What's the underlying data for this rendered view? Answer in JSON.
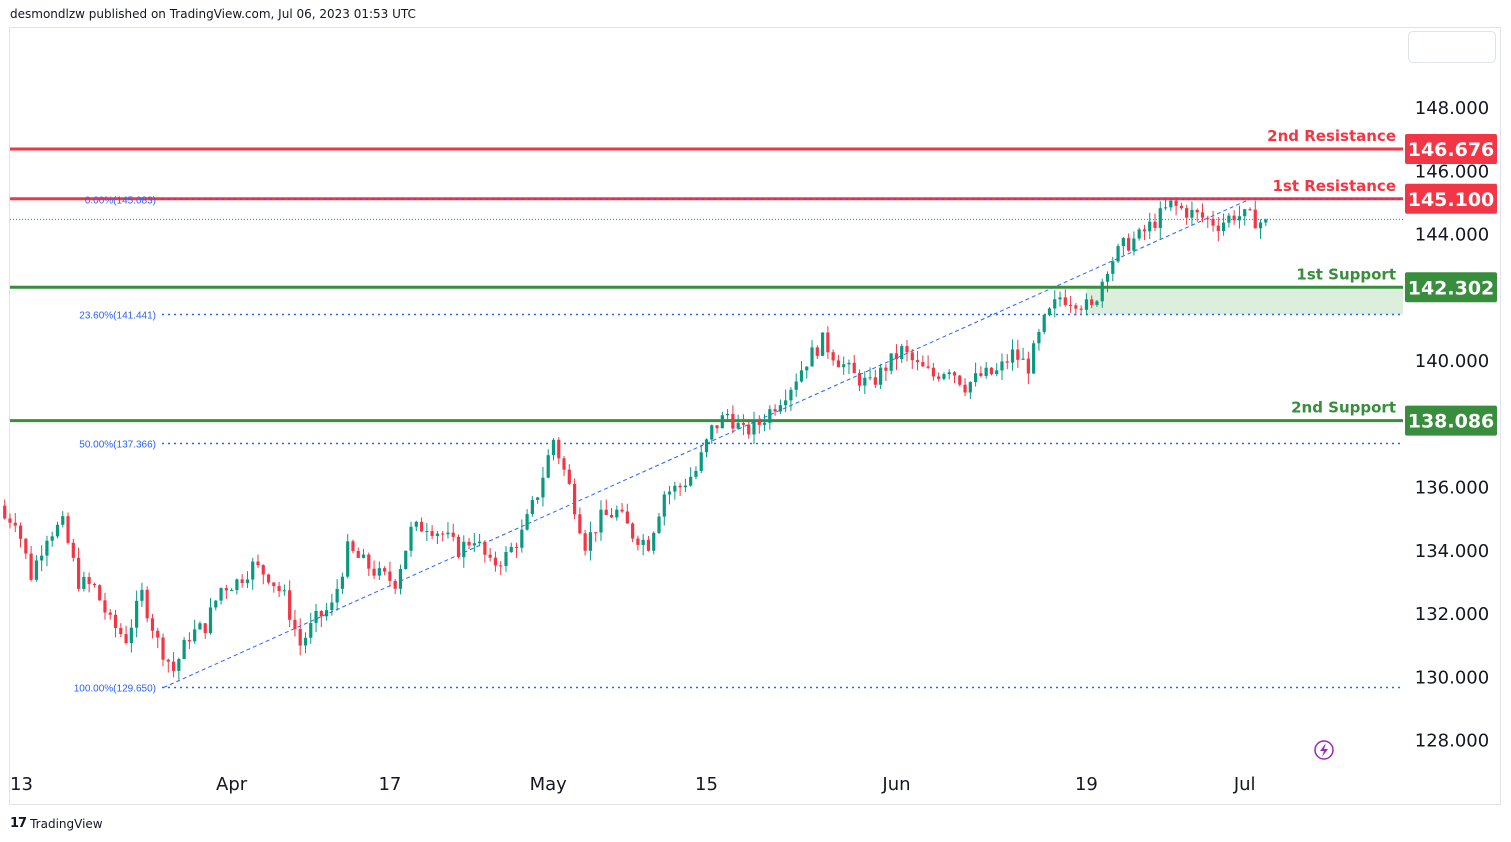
{
  "header": {
    "publish_text": "desmondlzw published on TradingView.com, Jul 06, 2023 01:53 UTC"
  },
  "footer": {
    "brand_label": "TradingView"
  },
  "colors": {
    "up": "#089981",
    "down": "#f23645",
    "resistance": "#f23645",
    "support": "#388e3c",
    "fib": "#2962ff",
    "zone": "#c8e6c9",
    "last_price": "#089981"
  },
  "chart_data": {
    "type": "candlestick",
    "ylim": [
      127.2,
      150.5
    ],
    "y_ticks": [
      {
        "value": 128,
        "label": "128.000"
      },
      {
        "value": 130,
        "label": "130.000"
      },
      {
        "value": 132,
        "label": "132.000"
      },
      {
        "value": 134,
        "label": "134.000"
      },
      {
        "value": 136,
        "label": "136.000"
      },
      {
        "value": 140,
        "label": "140.000"
      },
      {
        "value": 144,
        "label": "144.000"
      },
      {
        "value": 146,
        "label": "146.000"
      },
      {
        "value": 148,
        "label": "148.000"
      }
    ],
    "x_ticks": [
      {
        "index": 0,
        "label": "13"
      },
      {
        "index": 14,
        "label": "Apr"
      },
      {
        "index": 24,
        "label": "17"
      },
      {
        "index": 34,
        "label": "May"
      },
      {
        "index": 44,
        "label": "15"
      },
      {
        "index": 56,
        "label": "Jun"
      },
      {
        "index": 68,
        "label": "19"
      },
      {
        "index": 78,
        "label": "Jul"
      }
    ],
    "x_range": [
      0,
      88
    ],
    "levels": [
      {
        "name": "2nd Resistance",
        "value": 146.676,
        "label": "146.676",
        "kind": "resistance"
      },
      {
        "name": "1st Resistance",
        "value": 145.1,
        "label": "145.100",
        "kind": "resistance"
      },
      {
        "name": "1st Support",
        "value": 142.302,
        "label": "142.302",
        "kind": "support"
      },
      {
        "name": "2nd Support",
        "value": 138.086,
        "label": "138.086",
        "kind": "support"
      }
    ],
    "fib_levels": [
      {
        "label": "0.00%(145.083)",
        "value": 145.083
      },
      {
        "label": "23.60%(141.441)",
        "value": 141.441
      },
      {
        "label": "50.00%(137.366)",
        "value": 137.366
      },
      {
        "label": "100.00%(129.650)",
        "value": 129.65
      }
    ],
    "fib_trend": {
      "from": {
        "index": 9.7,
        "value": 129.65
      },
      "to": {
        "index": 78.3,
        "value": 145.083
      }
    },
    "support_zone": {
      "from_index": 68,
      "to_index": 88,
      "low": 141.441,
      "high": 142.302
    },
    "last_price": 144.45,
    "candles_close": [
      135.0,
      133.2,
      134.5,
      134.8,
      133.0,
      132.8,
      131.7,
      131.2,
      132.6,
      131.1,
      130.2,
      131.3,
      131.6,
      132.8,
      133.0,
      133.5,
      133.2,
      132.5,
      131.0,
      131.8,
      132.2,
      134.0,
      133.6,
      133.2,
      133.0,
      134.6,
      134.8,
      134.5,
      134.0,
      134.4,
      133.5,
      133.8,
      134.5,
      135.8,
      137.5,
      136.0,
      134.2,
      135.0,
      135.2,
      134.5,
      134.2,
      135.8,
      136.0,
      136.5,
      137.8,
      138.3,
      137.7,
      138.0,
      138.6,
      139.2,
      140.0,
      140.6,
      140.0,
      139.5,
      139.2,
      139.8,
      140.3,
      139.8,
      139.5,
      139.8,
      139.2,
      139.5,
      139.6,
      140.2,
      139.8,
      141.2,
      142.0,
      141.9,
      141.6,
      143.0,
      143.6,
      143.9,
      144.4,
      144.9,
      144.7,
      144.5,
      144.3,
      144.6,
      144.5,
      144.3
    ]
  }
}
